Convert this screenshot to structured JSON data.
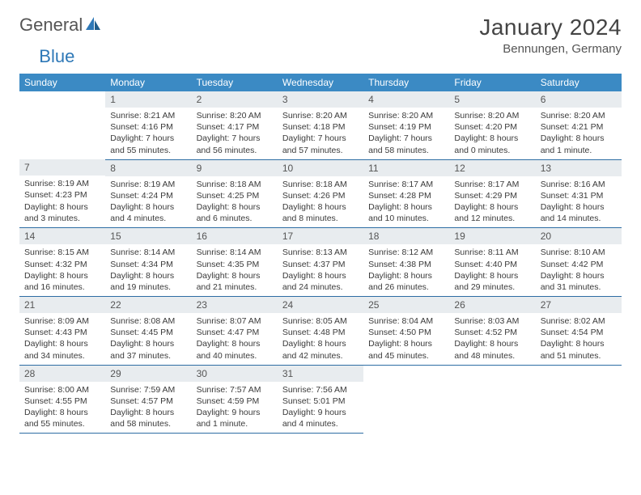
{
  "logo": {
    "text1": "General",
    "text2": "Blue"
  },
  "title": "January 2024",
  "location": "Bennungen, Germany",
  "colors": {
    "header_bg": "#3b8ac4",
    "header_fg": "#ffffff",
    "daynum_bg": "#e8ecef",
    "border": "#2e6da4",
    "logo_blue": "#2e78b7",
    "text": "#3a3a3a"
  },
  "weekdays": [
    "Sunday",
    "Monday",
    "Tuesday",
    "Wednesday",
    "Thursday",
    "Friday",
    "Saturday"
  ],
  "weeks": [
    [
      null,
      {
        "n": "1",
        "sr": "Sunrise: 8:21 AM",
        "ss": "Sunset: 4:16 PM",
        "d1": "Daylight: 7 hours",
        "d2": "and 55 minutes."
      },
      {
        "n": "2",
        "sr": "Sunrise: 8:20 AM",
        "ss": "Sunset: 4:17 PM",
        "d1": "Daylight: 7 hours",
        "d2": "and 56 minutes."
      },
      {
        "n": "3",
        "sr": "Sunrise: 8:20 AM",
        "ss": "Sunset: 4:18 PM",
        "d1": "Daylight: 7 hours",
        "d2": "and 57 minutes."
      },
      {
        "n": "4",
        "sr": "Sunrise: 8:20 AM",
        "ss": "Sunset: 4:19 PM",
        "d1": "Daylight: 7 hours",
        "d2": "and 58 minutes."
      },
      {
        "n": "5",
        "sr": "Sunrise: 8:20 AM",
        "ss": "Sunset: 4:20 PM",
        "d1": "Daylight: 8 hours",
        "d2": "and 0 minutes."
      },
      {
        "n": "6",
        "sr": "Sunrise: 8:20 AM",
        "ss": "Sunset: 4:21 PM",
        "d1": "Daylight: 8 hours",
        "d2": "and 1 minute."
      }
    ],
    [
      {
        "n": "7",
        "sr": "Sunrise: 8:19 AM",
        "ss": "Sunset: 4:23 PM",
        "d1": "Daylight: 8 hours",
        "d2": "and 3 minutes."
      },
      {
        "n": "8",
        "sr": "Sunrise: 8:19 AM",
        "ss": "Sunset: 4:24 PM",
        "d1": "Daylight: 8 hours",
        "d2": "and 4 minutes."
      },
      {
        "n": "9",
        "sr": "Sunrise: 8:18 AM",
        "ss": "Sunset: 4:25 PM",
        "d1": "Daylight: 8 hours",
        "d2": "and 6 minutes."
      },
      {
        "n": "10",
        "sr": "Sunrise: 8:18 AM",
        "ss": "Sunset: 4:26 PM",
        "d1": "Daylight: 8 hours",
        "d2": "and 8 minutes."
      },
      {
        "n": "11",
        "sr": "Sunrise: 8:17 AM",
        "ss": "Sunset: 4:28 PM",
        "d1": "Daylight: 8 hours",
        "d2": "and 10 minutes."
      },
      {
        "n": "12",
        "sr": "Sunrise: 8:17 AM",
        "ss": "Sunset: 4:29 PM",
        "d1": "Daylight: 8 hours",
        "d2": "and 12 minutes."
      },
      {
        "n": "13",
        "sr": "Sunrise: 8:16 AM",
        "ss": "Sunset: 4:31 PM",
        "d1": "Daylight: 8 hours",
        "d2": "and 14 minutes."
      }
    ],
    [
      {
        "n": "14",
        "sr": "Sunrise: 8:15 AM",
        "ss": "Sunset: 4:32 PM",
        "d1": "Daylight: 8 hours",
        "d2": "and 16 minutes."
      },
      {
        "n": "15",
        "sr": "Sunrise: 8:14 AM",
        "ss": "Sunset: 4:34 PM",
        "d1": "Daylight: 8 hours",
        "d2": "and 19 minutes."
      },
      {
        "n": "16",
        "sr": "Sunrise: 8:14 AM",
        "ss": "Sunset: 4:35 PM",
        "d1": "Daylight: 8 hours",
        "d2": "and 21 minutes."
      },
      {
        "n": "17",
        "sr": "Sunrise: 8:13 AM",
        "ss": "Sunset: 4:37 PM",
        "d1": "Daylight: 8 hours",
        "d2": "and 24 minutes."
      },
      {
        "n": "18",
        "sr": "Sunrise: 8:12 AM",
        "ss": "Sunset: 4:38 PM",
        "d1": "Daylight: 8 hours",
        "d2": "and 26 minutes."
      },
      {
        "n": "19",
        "sr": "Sunrise: 8:11 AM",
        "ss": "Sunset: 4:40 PM",
        "d1": "Daylight: 8 hours",
        "d2": "and 29 minutes."
      },
      {
        "n": "20",
        "sr": "Sunrise: 8:10 AM",
        "ss": "Sunset: 4:42 PM",
        "d1": "Daylight: 8 hours",
        "d2": "and 31 minutes."
      }
    ],
    [
      {
        "n": "21",
        "sr": "Sunrise: 8:09 AM",
        "ss": "Sunset: 4:43 PM",
        "d1": "Daylight: 8 hours",
        "d2": "and 34 minutes."
      },
      {
        "n": "22",
        "sr": "Sunrise: 8:08 AM",
        "ss": "Sunset: 4:45 PM",
        "d1": "Daylight: 8 hours",
        "d2": "and 37 minutes."
      },
      {
        "n": "23",
        "sr": "Sunrise: 8:07 AM",
        "ss": "Sunset: 4:47 PM",
        "d1": "Daylight: 8 hours",
        "d2": "and 40 minutes."
      },
      {
        "n": "24",
        "sr": "Sunrise: 8:05 AM",
        "ss": "Sunset: 4:48 PM",
        "d1": "Daylight: 8 hours",
        "d2": "and 42 minutes."
      },
      {
        "n": "25",
        "sr": "Sunrise: 8:04 AM",
        "ss": "Sunset: 4:50 PM",
        "d1": "Daylight: 8 hours",
        "d2": "and 45 minutes."
      },
      {
        "n": "26",
        "sr": "Sunrise: 8:03 AM",
        "ss": "Sunset: 4:52 PM",
        "d1": "Daylight: 8 hours",
        "d2": "and 48 minutes."
      },
      {
        "n": "27",
        "sr": "Sunrise: 8:02 AM",
        "ss": "Sunset: 4:54 PM",
        "d1": "Daylight: 8 hours",
        "d2": "and 51 minutes."
      }
    ],
    [
      {
        "n": "28",
        "sr": "Sunrise: 8:00 AM",
        "ss": "Sunset: 4:55 PM",
        "d1": "Daylight: 8 hours",
        "d2": "and 55 minutes."
      },
      {
        "n": "29",
        "sr": "Sunrise: 7:59 AM",
        "ss": "Sunset: 4:57 PM",
        "d1": "Daylight: 8 hours",
        "d2": "and 58 minutes."
      },
      {
        "n": "30",
        "sr": "Sunrise: 7:57 AM",
        "ss": "Sunset: 4:59 PM",
        "d1": "Daylight: 9 hours",
        "d2": "and 1 minute."
      },
      {
        "n": "31",
        "sr": "Sunrise: 7:56 AM",
        "ss": "Sunset: 5:01 PM",
        "d1": "Daylight: 9 hours",
        "d2": "and 4 minutes."
      },
      null,
      null,
      null
    ]
  ]
}
